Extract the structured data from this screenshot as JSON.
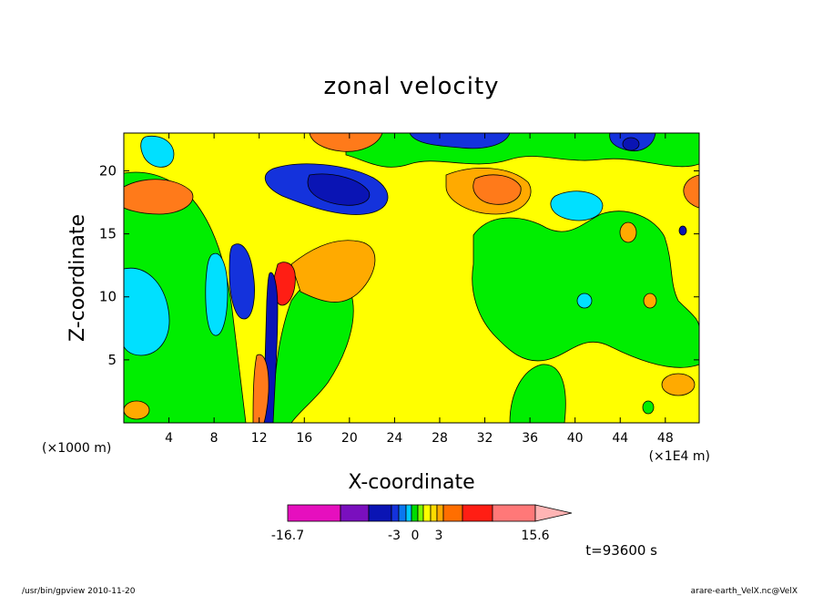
{
  "chart_data": {
    "type": "heatmap",
    "title": "zonal velocity",
    "xlabel": "X-coordinate",
    "ylabel": "Z-coordinate",
    "x_unit_left": "(×1000 m)",
    "x_unit_right": "(×1E4 m)",
    "x_ticks": [
      "4",
      "8",
      "12",
      "16",
      "20",
      "24",
      "28",
      "32",
      "36",
      "40",
      "44",
      "48"
    ],
    "y_ticks": [
      "5",
      "10",
      "15",
      "20"
    ],
    "xlim": [
      0,
      51
    ],
    "ylim": [
      0,
      23
    ],
    "colorbar": {
      "labels": [
        "-16.7",
        "-3",
        "0",
        "3",
        "15.6"
      ],
      "colors": [
        "#e60fbe",
        "#7a0fbe",
        "#0a14b4",
        "#1432dc",
        "#0a78f0",
        "#00c8ff",
        "#00dc00",
        "#7dff00",
        "#ffff00",
        "#ffdc00",
        "#ffaa00",
        "#ff6e00",
        "#ff1e14",
        "#ff7878",
        "#ffb4b4"
      ]
    },
    "time_label": "t=93600 s"
  },
  "footer": {
    "left": "/usr/bin/gpview   2010-11-20",
    "right": "arare-earth_VelX.nc@VelX"
  }
}
